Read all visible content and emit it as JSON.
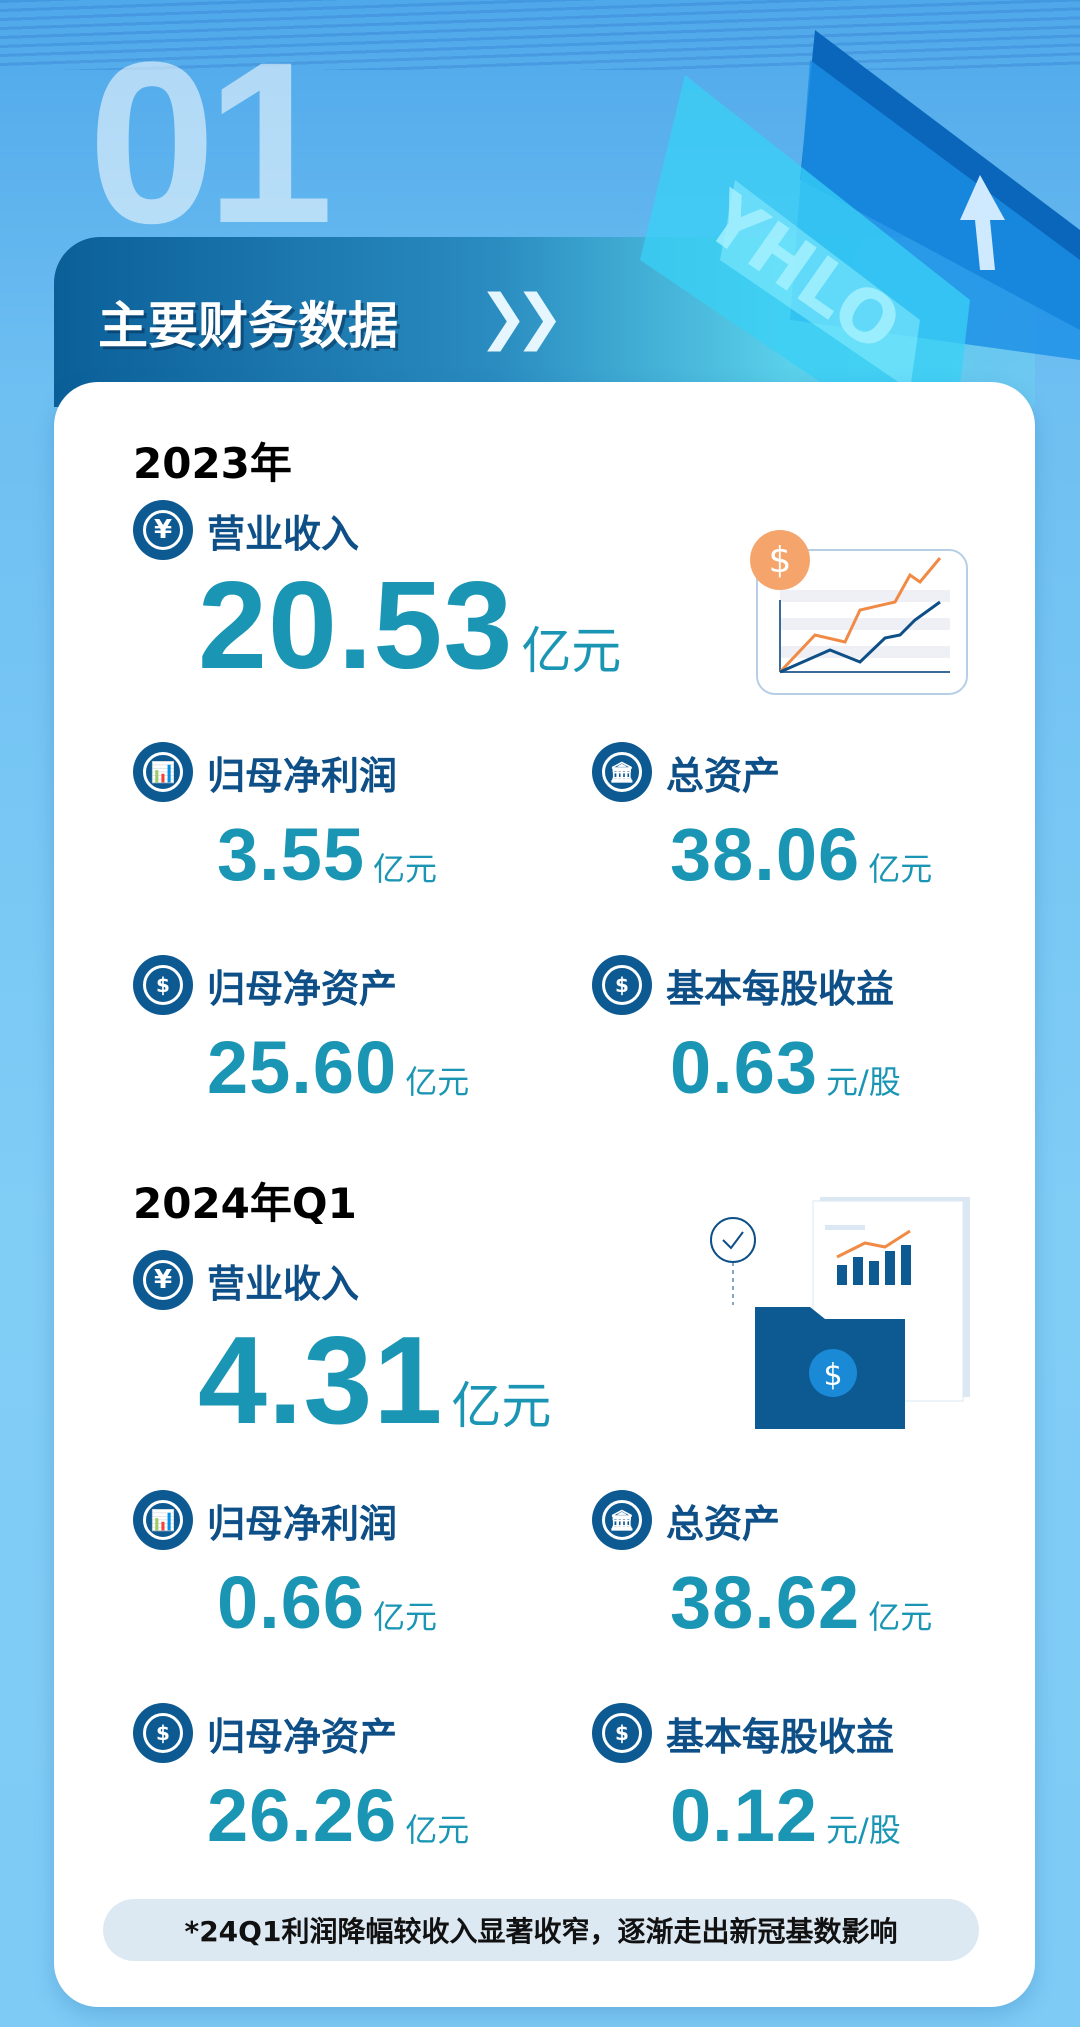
{
  "header": {
    "watermark": "01",
    "title": "主要财务数据",
    "chevron": "»",
    "logo_text": "YHLO"
  },
  "colors": {
    "value": "#1a96b4",
    "label": "#0d4f86",
    "icon": "#0d5a93",
    "accent_orange": "#f5a56c"
  },
  "sections": [
    {
      "year": "2023年",
      "revenue": {
        "label": "营业收入",
        "value": "20.53",
        "unit": "亿元",
        "icon": "yen-icon"
      },
      "items": [
        {
          "label": "归母净利润",
          "value": "3.55",
          "unit": "亿元",
          "icon": "bar-chart-icon"
        },
        {
          "label": "总资产",
          "value": "38.06",
          "unit": "亿元",
          "icon": "bank-icon"
        },
        {
          "label": "归母净资产",
          "value": "25.60",
          "unit": "亿元",
          "icon": "gear-dollar-icon"
        },
        {
          "label": "基本每股收益",
          "value": "0.63",
          "unit": "元/股",
          "icon": "hand-coin-icon"
        }
      ]
    },
    {
      "year": "2024年Q1",
      "revenue": {
        "label": "营业收入",
        "value": "4.31",
        "unit": "亿元",
        "icon": "yen-icon"
      },
      "items": [
        {
          "label": "归母净利润",
          "value": "0.66",
          "unit": "亿元",
          "icon": "bar-chart-icon"
        },
        {
          "label": "总资产",
          "value": "38.62",
          "unit": "亿元",
          "icon": "bank-icon"
        },
        {
          "label": "归母净资产",
          "value": "26.26",
          "unit": "亿元",
          "icon": "gear-dollar-icon"
        },
        {
          "label": "基本每股收益",
          "value": "0.12",
          "unit": "元/股",
          "icon": "hand-coin-icon"
        }
      ]
    }
  ],
  "illustrations": {
    "dollar": "$"
  },
  "note": "*24Q1利润降幅较收入显著收窄，逐渐走出新冠基数影响"
}
